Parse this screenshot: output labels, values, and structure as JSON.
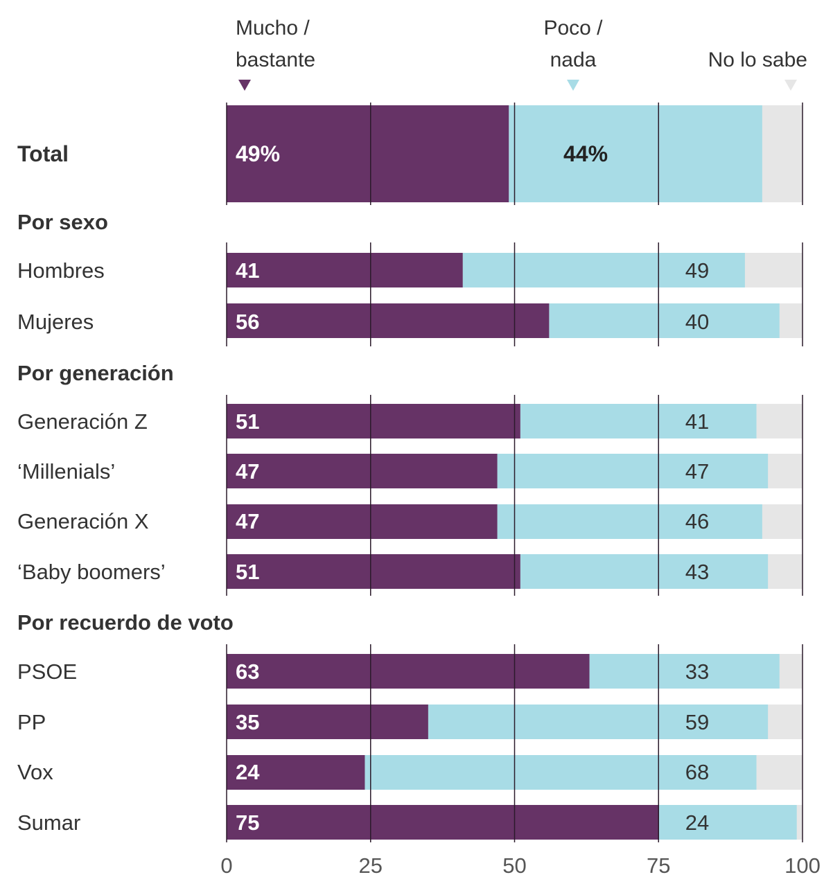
{
  "legend": [
    {
      "label_line1": "Mucho /",
      "label_line2": "bastante",
      "color": "#663366"
    },
    {
      "label_line1": "Poco /",
      "label_line2": "nada",
      "color": "#a8dce6"
    },
    {
      "label_line1": "",
      "label_line2": "No lo sabe",
      "color": "#e6e6e6"
    }
  ],
  "chart_data": {
    "type": "bar",
    "orientation": "horizontal",
    "stacked": true,
    "unit": "%",
    "xlim": [
      0,
      100
    ],
    "xticks": [
      "0",
      "25",
      "50",
      "75",
      "100"
    ],
    "grid": true,
    "legend_position": "top",
    "series_names": [
      "Mucho / bastante",
      "Poco / nada",
      "No lo sabe"
    ],
    "rows": [
      {
        "label": "Total",
        "mucho": 49,
        "poco": 44,
        "mucho_label": "49%",
        "poco_label": "44%",
        "group": ""
      },
      {
        "label": "Hombres",
        "mucho": 41,
        "poco": 49,
        "mucho_label": "41",
        "poco_label": "49",
        "group": "Por sexo"
      },
      {
        "label": "Mujeres",
        "mucho": 56,
        "poco": 40,
        "mucho_label": "56",
        "poco_label": "40",
        "group": "Por sexo"
      },
      {
        "label": "Generación Z",
        "mucho": 51,
        "poco": 41,
        "mucho_label": "51",
        "poco_label": "41",
        "group": "Por generación"
      },
      {
        "label": "‘Millenials’",
        "mucho": 47,
        "poco": 47,
        "mucho_label": "47",
        "poco_label": "47",
        "group": "Por generación"
      },
      {
        "label": "Generación X",
        "mucho": 47,
        "poco": 46,
        "mucho_label": "47",
        "poco_label": "46",
        "group": "Por generación"
      },
      {
        "label": "‘Baby boomers’",
        "mucho": 51,
        "poco": 43,
        "mucho_label": "51",
        "poco_label": "43",
        "group": "Por generación"
      },
      {
        "label": "PSOE",
        "mucho": 63,
        "poco": 33,
        "mucho_label": "63",
        "poco_label": "33",
        "group": "Por recuerdo de voto"
      },
      {
        "label": "PP",
        "mucho": 35,
        "poco": 59,
        "mucho_label": "35",
        "poco_label": "59",
        "group": "Por recuerdo de voto"
      },
      {
        "label": "Vox",
        "mucho": 24,
        "poco": 68,
        "mucho_label": "24",
        "poco_label": "68",
        "group": "Por recuerdo de voto"
      },
      {
        "label": "Sumar",
        "mucho": 75,
        "poco": 24,
        "mucho_label": "75",
        "poco_label": "24",
        "group": "Por recuerdo de voto"
      }
    ],
    "group_headers": [
      "Por sexo",
      "Por generación",
      "Por recuerdo de voto"
    ]
  }
}
